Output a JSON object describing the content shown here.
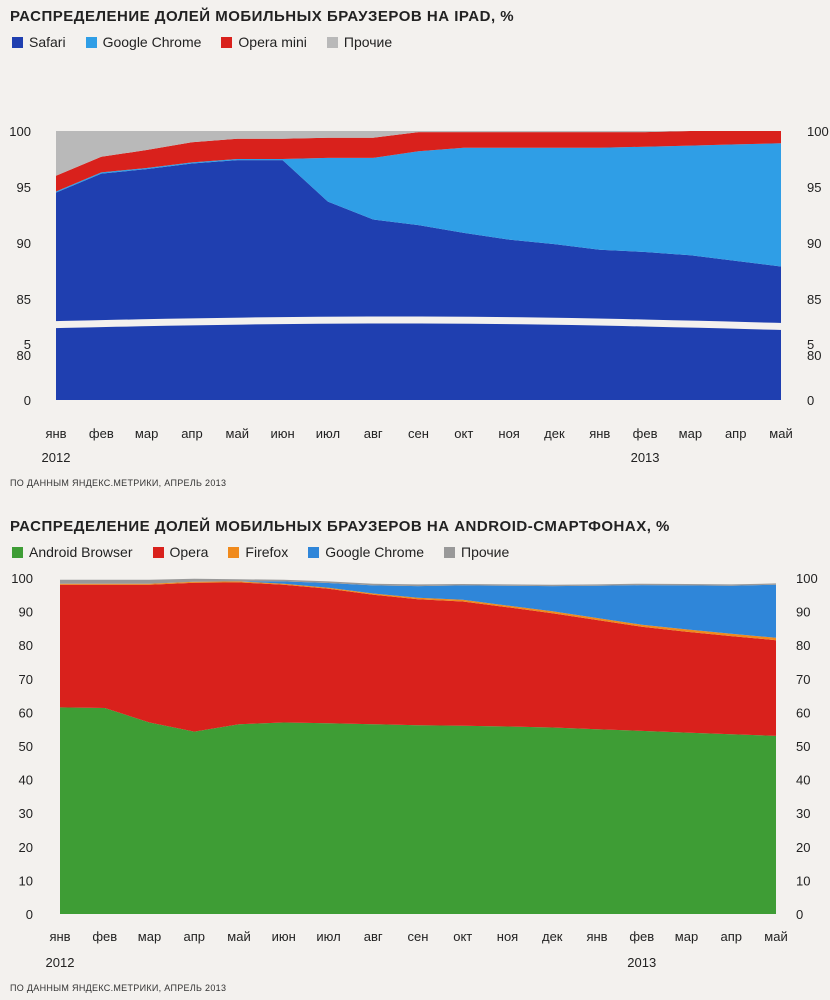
{
  "chart_data": [
    {
      "type": "area",
      "stacked": true,
      "title": "РАСПРЕДЕЛЕНИЕ ДОЛЕЙ МОБИЛЬНЫХ БРАУЗЕРОВ НА IPAD, %",
      "source": "ПО ДАННЫМ ЯНДЕКС.МЕТРИКИ, АПРЕЛЬ 2013",
      "categories": [
        "янв",
        "фев",
        "мар",
        "апр",
        "май",
        "июн",
        "июл",
        "авг",
        "сен",
        "окт",
        "ноя",
        "дек",
        "янв",
        "фев",
        "мар",
        "апр",
        "май"
      ],
      "year_labels": [
        {
          "label": "2012",
          "index": 0
        },
        {
          "label": "2013",
          "index": 13
        }
      ],
      "y_ticks": [
        0,
        5,
        80,
        85,
        90,
        95,
        100
      ],
      "axis_break": {
        "from": 5,
        "to": 79
      },
      "legend_position": "top-left",
      "grid": false,
      "series": [
        {
          "name": "Safari",
          "color": "#1f3fb0",
          "values": [
            94.5,
            96.2,
            96.6,
            97.1,
            97.4,
            97.4,
            93.7,
            92.1,
            91.6,
            90.9,
            90.3,
            89.9,
            89.4,
            89.2,
            88.9,
            88.4,
            87.9
          ]
        },
        {
          "name": "Google Chrome",
          "color": "#2f9ee6",
          "values": [
            0.1,
            0.1,
            0.1,
            0.1,
            0.1,
            0.1,
            3.9,
            5.5,
            6.6,
            7.6,
            8.2,
            8.6,
            9.1,
            9.4,
            9.8,
            10.4,
            11.0
          ]
        },
        {
          "name": "Opera mini",
          "color": "#d9211c",
          "values": [
            1.4,
            1.4,
            1.6,
            1.8,
            1.8,
            1.8,
            1.8,
            1.8,
            1.7,
            1.4,
            1.4,
            1.4,
            1.4,
            1.3,
            1.3,
            1.2,
            1.1
          ]
        },
        {
          "name": "Прочие",
          "color": "#b9b9b9",
          "values": [
            4.0,
            2.3,
            1.7,
            1.0,
            0.7,
            0.7,
            0.6,
            0.6,
            0.1,
            0.1,
            0.1,
            0.1,
            0.1,
            0.1,
            0.0,
            0.0,
            0.0
          ]
        }
      ]
    },
    {
      "type": "area",
      "stacked": true,
      "title": "РАСПРЕДЕЛЕНИЕ ДОЛЕЙ МОБИЛЬНЫХ БРАУЗЕРОВ НА ANDROID-СМАРТФОНАХ, %",
      "source": "ПО ДАННЫМ ЯНДЕКС.МЕТРИКИ, АПРЕЛЬ 2013",
      "categories": [
        "янв",
        "фев",
        "мар",
        "апр",
        "май",
        "июн",
        "июл",
        "авг",
        "сен",
        "окт",
        "ноя",
        "дек",
        "янв",
        "фев",
        "мар",
        "апр",
        "май"
      ],
      "year_labels": [
        {
          "label": "2012",
          "index": 0
        },
        {
          "label": "2013",
          "index": 13
        }
      ],
      "y_ticks": [
        0,
        10,
        20,
        30,
        40,
        50,
        60,
        70,
        80,
        90,
        100
      ],
      "ylim": [
        0,
        100
      ],
      "legend_position": "top-left",
      "grid": false,
      "series": [
        {
          "name": "Android Browser",
          "color": "#3e9d35",
          "values": [
            61.5,
            61.3,
            57,
            54.3,
            56.5,
            57,
            56.8,
            56.5,
            56.2,
            56,
            55.8,
            55.5,
            55,
            54.5,
            54,
            53.5,
            53
          ]
        },
        {
          "name": "Opera",
          "color": "#d9211c",
          "values": [
            36.5,
            36.7,
            41,
            44.3,
            42.2,
            41,
            40,
            38.5,
            37.5,
            37,
            35.5,
            34,
            32.5,
            31,
            30,
            29.2,
            28.5
          ]
        },
        {
          "name": "Firefox",
          "color": "#f08a1c",
          "values": [
            0.3,
            0.3,
            0.3,
            0.3,
            0.3,
            0.3,
            0.3,
            0.4,
            0.4,
            0.5,
            0.5,
            0.6,
            0.6,
            0.6,
            0.7,
            0.7,
            0.7
          ]
        },
        {
          "name": "Google Chrome",
          "color": "#2f86d9",
          "values": [
            0,
            0,
            0,
            0,
            0,
            0.7,
            1.4,
            2.4,
            3.5,
            4.3,
            5.9,
            7.5,
            9.6,
            11.8,
            13.1,
            14.3,
            15.8
          ]
        },
        {
          "name": "Прочие",
          "color": "#999999",
          "values": [
            1.2,
            1.2,
            1.2,
            0.9,
            0.6,
            0.5,
            0.5,
            0.5,
            0.5,
            0.4,
            0.4,
            0.4,
            0.4,
            0.4,
            0.4,
            0.4,
            0.4
          ]
        }
      ]
    }
  ]
}
